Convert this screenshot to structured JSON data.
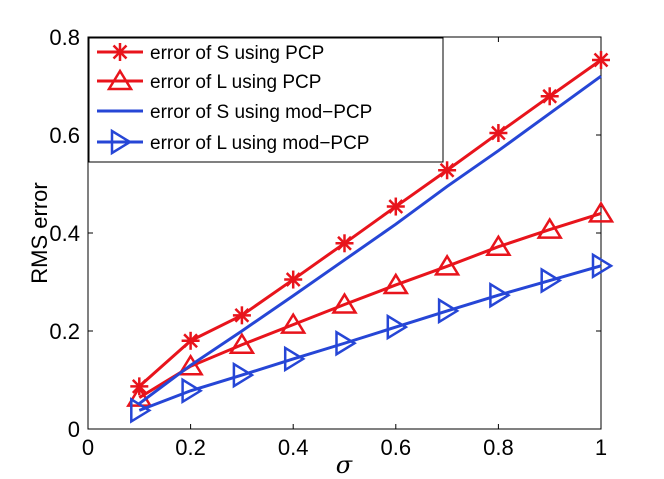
{
  "chart_data": {
    "type": "line",
    "title": "",
    "xlabel": "σ",
    "ylabel": "RMS error",
    "xlim": [
      0,
      1
    ],
    "ylim": [
      0,
      0.8
    ],
    "x_ticks": [
      "0",
      "0.2",
      "0.4",
      "0.6",
      "0.8",
      "1"
    ],
    "y_ticks": [
      "0",
      "0.2",
      "0.4",
      "0.6",
      "0.8"
    ],
    "grid": false,
    "legend_position": "top-left",
    "series": [
      {
        "name": "error of S using PCP",
        "color": "#e8141c",
        "marker": "asterisk",
        "x": [
          0.1,
          0.2,
          0.3,
          0.4,
          0.5,
          0.6,
          0.7,
          0.8,
          0.9,
          1.0
        ],
        "y": [
          0.087,
          0.18,
          0.232,
          0.305,
          0.379,
          0.454,
          0.528,
          0.604,
          0.679,
          0.753
        ]
      },
      {
        "name": "error of L using PCP",
        "color": "#e8141c",
        "marker": "triangle-up",
        "x": [
          0.1,
          0.2,
          0.3,
          0.4,
          0.5,
          0.6,
          0.7,
          0.8,
          0.9,
          1.0
        ],
        "y": [
          0.064,
          0.128,
          0.172,
          0.213,
          0.254,
          0.294,
          0.332,
          0.372,
          0.407,
          0.44
        ]
      },
      {
        "name": "error of S using mod−PCP",
        "color": "#2646d6",
        "marker": "none",
        "x": [
          0.1,
          0.2,
          0.3,
          0.4,
          0.5,
          0.6,
          0.7,
          0.8,
          0.9,
          1.0
        ],
        "y": [
          0.052,
          0.13,
          0.2,
          0.272,
          0.345,
          0.418,
          0.495,
          0.568,
          0.644,
          0.72
        ]
      },
      {
        "name": "error of L using mod−PCP",
        "color": "#2646d6",
        "marker": "triangle-right",
        "x": [
          0.1,
          0.2,
          0.3,
          0.4,
          0.5,
          0.6,
          0.7,
          0.8,
          0.9,
          1.0
        ],
        "y": [
          0.038,
          0.078,
          0.11,
          0.143,
          0.175,
          0.208,
          0.241,
          0.273,
          0.303,
          0.333
        ]
      }
    ]
  }
}
